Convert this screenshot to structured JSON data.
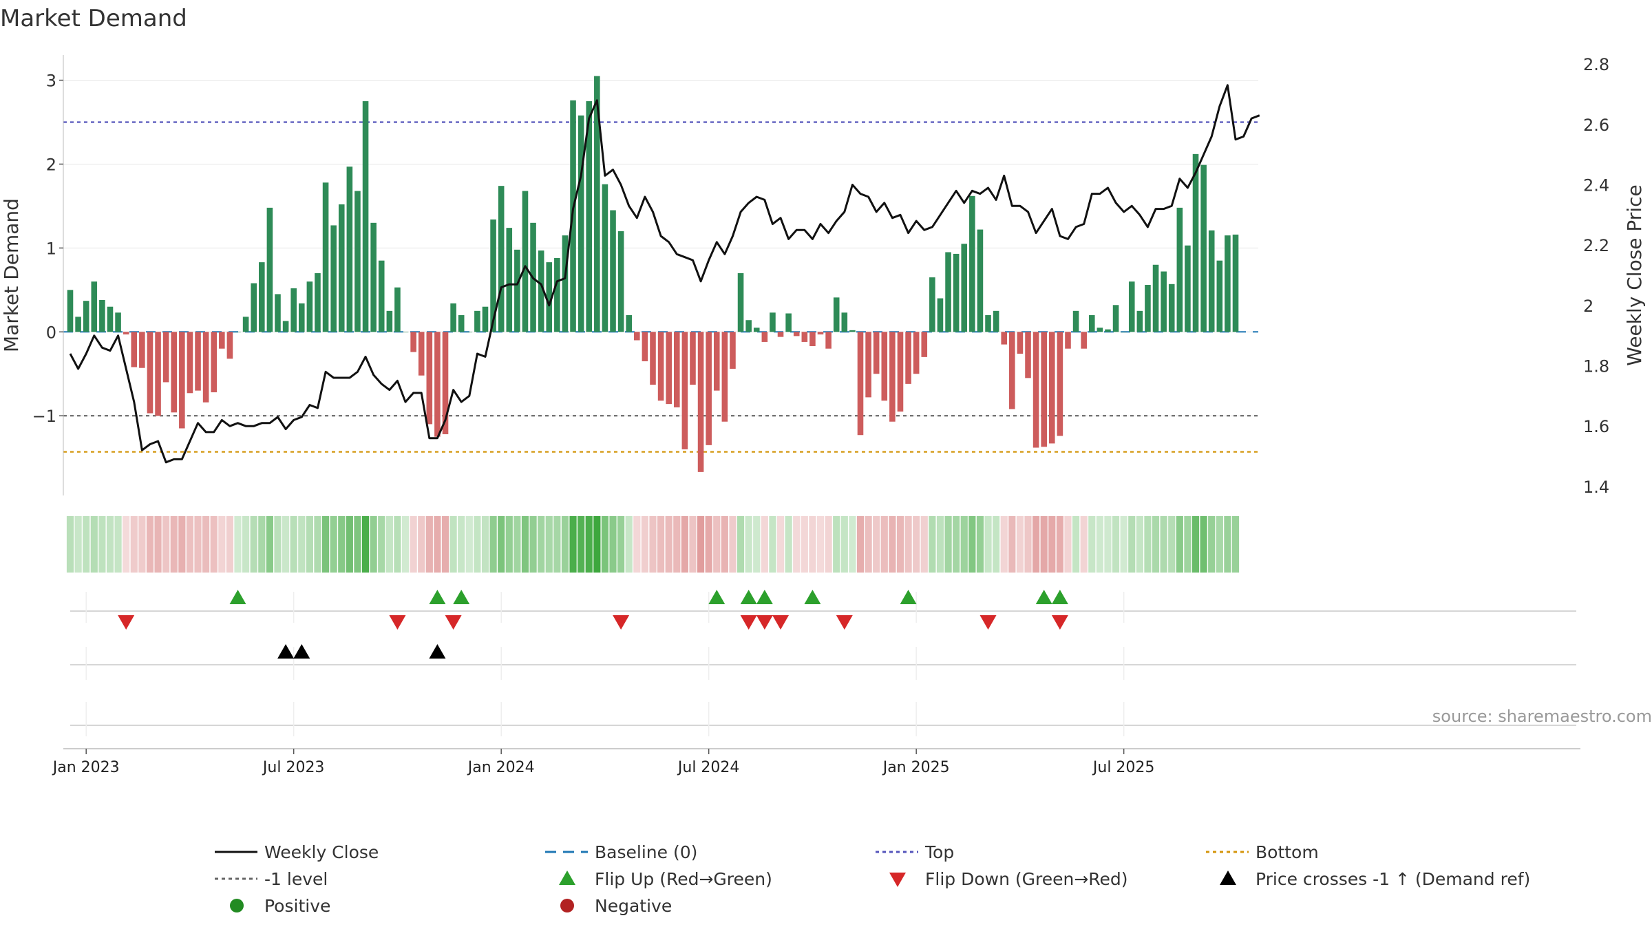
{
  "chart_data": {
    "type": "bar",
    "title": "Market Demand",
    "ylabel_left": "Market Demand",
    "ylabel_right": "Weekly Close Price",
    "source": "source: sharemaestro.com",
    "y_left_range": [
      -1.95,
      3.3
    ],
    "y_left_ticks": [
      {
        "v": 3,
        "label": "3"
      },
      {
        "v": 2,
        "label": "2"
      },
      {
        "v": 1,
        "label": "1"
      },
      {
        "v": 0,
        "label": "0"
      },
      {
        "v": -1,
        "label": "−1"
      }
    ],
    "y_right_range": [
      1.37,
      2.83
    ],
    "y_right_ticks": [
      {
        "v": 2.8,
        "label": "2.8"
      },
      {
        "v": 2.6,
        "label": "2.6"
      },
      {
        "v": 2.4,
        "label": "2.4"
      },
      {
        "v": 2.2,
        "label": "2.2"
      },
      {
        "v": 2.0,
        "label": "2"
      },
      {
        "v": 1.8,
        "label": "1.8"
      },
      {
        "v": 1.6,
        "label": "1.6"
      },
      {
        "v": 1.4,
        "label": "1.4"
      }
    ],
    "x_ticks": [
      {
        "week": 2,
        "label": "Jan 2023"
      },
      {
        "week": 28,
        "label": "Jul 2023"
      },
      {
        "week": 54,
        "label": "Jan 2024"
      },
      {
        "week": 80,
        "label": "Jul 2024"
      },
      {
        "week": 106,
        "label": "Jan 2025"
      },
      {
        "week": 132,
        "label": "Jul 2025"
      }
    ],
    "reference_lines": {
      "baseline": 0,
      "top": 2.5,
      "minus_one": -1,
      "bottom": -1.43
    },
    "demand": [
      0.5,
      0.18,
      0.37,
      0.6,
      0.38,
      0.3,
      0.23,
      -0.03,
      -0.42,
      -0.43,
      -0.97,
      -1.0,
      -0.6,
      -0.96,
      -1.15,
      -0.73,
      -0.7,
      -0.84,
      -0.72,
      -0.2,
      -0.32,
      0.0,
      0.18,
      0.58,
      0.83,
      1.48,
      0.45,
      0.13,
      0.52,
      0.34,
      0.6,
      0.7,
      1.78,
      1.27,
      1.52,
      1.97,
      1.68,
      2.75,
      1.3,
      0.85,
      0.25,
      0.53,
      0.0,
      -0.24,
      -0.52,
      -1.1,
      -1.25,
      -1.22,
      0.34,
      0.2,
      0.0,
      0.25,
      0.3,
      1.34,
      1.74,
      1.24,
      0.98,
      1.68,
      1.3,
      0.97,
      0.83,
      0.88,
      1.15,
      2.76,
      2.58,
      2.75,
      3.05,
      1.76,
      1.45,
      1.2,
      0.2,
      -0.1,
      -0.35,
      -0.63,
      -0.82,
      -0.86,
      -0.9,
      -1.4,
      -0.63,
      -1.67,
      -1.35,
      -0.7,
      -1.07,
      -0.44,
      0.7,
      0.14,
      0.05,
      -0.12,
      0.23,
      -0.06,
      0.22,
      -0.05,
      -0.12,
      -0.17,
      -0.03,
      -0.2,
      0.41,
      0.23,
      0.02,
      -1.23,
      -0.78,
      -0.5,
      -0.82,
      -1.07,
      -0.95,
      -0.62,
      -0.5,
      -0.3,
      0.65,
      0.4,
      0.95,
      0.93,
      1.05,
      1.62,
      1.22,
      0.2,
      0.25,
      -0.15,
      -0.92,
      -0.26,
      -0.55,
      -1.38,
      -1.37,
      -1.33,
      -1.24,
      -0.2,
      0.25,
      -0.2,
      0.2,
      0.05,
      0.03,
      0.32,
      0.0,
      0.6,
      0.25,
      0.56,
      0.8,
      0.72,
      0.57,
      1.48,
      1.03,
      2.12,
      1.99,
      1.21,
      0.85,
      1.15,
      1.16
    ],
    "price": [
      1.84,
      1.79,
      1.84,
      1.9,
      1.86,
      1.85,
      1.9,
      1.79,
      1.68,
      1.52,
      1.54,
      1.55,
      1.48,
      1.49,
      1.49,
      1.55,
      1.61,
      1.58,
      1.58,
      1.62,
      1.6,
      1.61,
      1.6,
      1.6,
      1.61,
      1.61,
      1.63,
      1.59,
      1.62,
      1.63,
      1.67,
      1.66,
      1.78,
      1.76,
      1.76,
      1.76,
      1.78,
      1.83,
      1.77,
      1.74,
      1.72,
      1.75,
      1.68,
      1.71,
      1.71,
      1.56,
      1.56,
      1.62,
      1.72,
      1.68,
      1.7,
      1.84,
      1.83,
      1.95,
      2.06,
      2.07,
      2.07,
      2.13,
      2.09,
      2.07,
      2.0,
      2.08,
      2.09,
      2.32,
      2.43,
      2.62,
      2.68,
      2.43,
      2.45,
      2.4,
      2.33,
      2.29,
      2.36,
      2.31,
      2.23,
      2.21,
      2.17,
      2.16,
      2.15,
      2.08,
      2.15,
      2.21,
      2.17,
      2.23,
      2.31,
      2.34,
      2.36,
      2.35,
      2.27,
      2.29,
      2.22,
      2.25,
      2.25,
      2.22,
      2.27,
      2.24,
      2.28,
      2.31,
      2.4,
      2.37,
      2.36,
      2.31,
      2.34,
      2.29,
      2.3,
      2.24,
      2.28,
      2.25,
      2.26,
      2.3,
      2.34,
      2.38,
      2.34,
      2.38,
      2.37,
      2.39,
      2.35,
      2.43,
      2.33,
      2.33,
      2.31,
      2.24,
      2.28,
      2.32,
      2.23,
      2.22,
      2.26,
      2.27,
      2.37,
      2.37,
      2.39,
      2.34,
      2.31,
      2.33,
      2.3,
      2.26,
      2.32,
      2.32,
      2.33,
      2.42,
      2.39,
      2.44,
      2.5,
      2.56,
      2.66,
      2.73,
      2.55,
      2.56,
      2.62,
      2.63
    ],
    "flip_up_weeks": [
      21,
      46,
      49,
      81,
      85,
      87,
      93,
      105,
      122,
      124
    ],
    "flip_down_weeks": [
      7,
      41,
      48,
      69,
      85,
      87,
      89,
      97,
      115,
      124
    ],
    "price_cross_weeks": [
      27,
      29,
      46
    ],
    "legend": [
      {
        "label": "Weekly Close",
        "symbol": "line",
        "color": "#111111"
      },
      {
        "label": "Baseline (0)",
        "symbol": "dash",
        "color": "#1f77b4"
      },
      {
        "label": "Top",
        "symbol": "dot",
        "color": "#5555bb"
      },
      {
        "label": "Bottom",
        "symbol": "dot",
        "color": "#d4960c"
      },
      {
        "label": "-1 level",
        "symbol": "dot",
        "color": "#666666"
      },
      {
        "label": "Flip Up (Red→Green)",
        "symbol": "tri-up",
        "color": "#2ca02c"
      },
      {
        "label": "Flip Down (Green→Red)",
        "symbol": "tri-down",
        "color": "#d62728"
      },
      {
        "label": "Price crosses -1 ↑ (Demand ref)",
        "symbol": "tri-up",
        "color": "#000000"
      },
      {
        "label": "Positive",
        "symbol": "circle",
        "color": "#228b22"
      },
      {
        "label": "Negative",
        "symbol": "circle",
        "color": "#b22222"
      }
    ],
    "colors": {
      "positive_bar": "#2e8b57",
      "negative_bar": "#cd5c5c",
      "price_line": "#111111",
      "flip_up": "#2ca02c",
      "flip_down": "#d62728",
      "price_cross": "#000000"
    }
  }
}
